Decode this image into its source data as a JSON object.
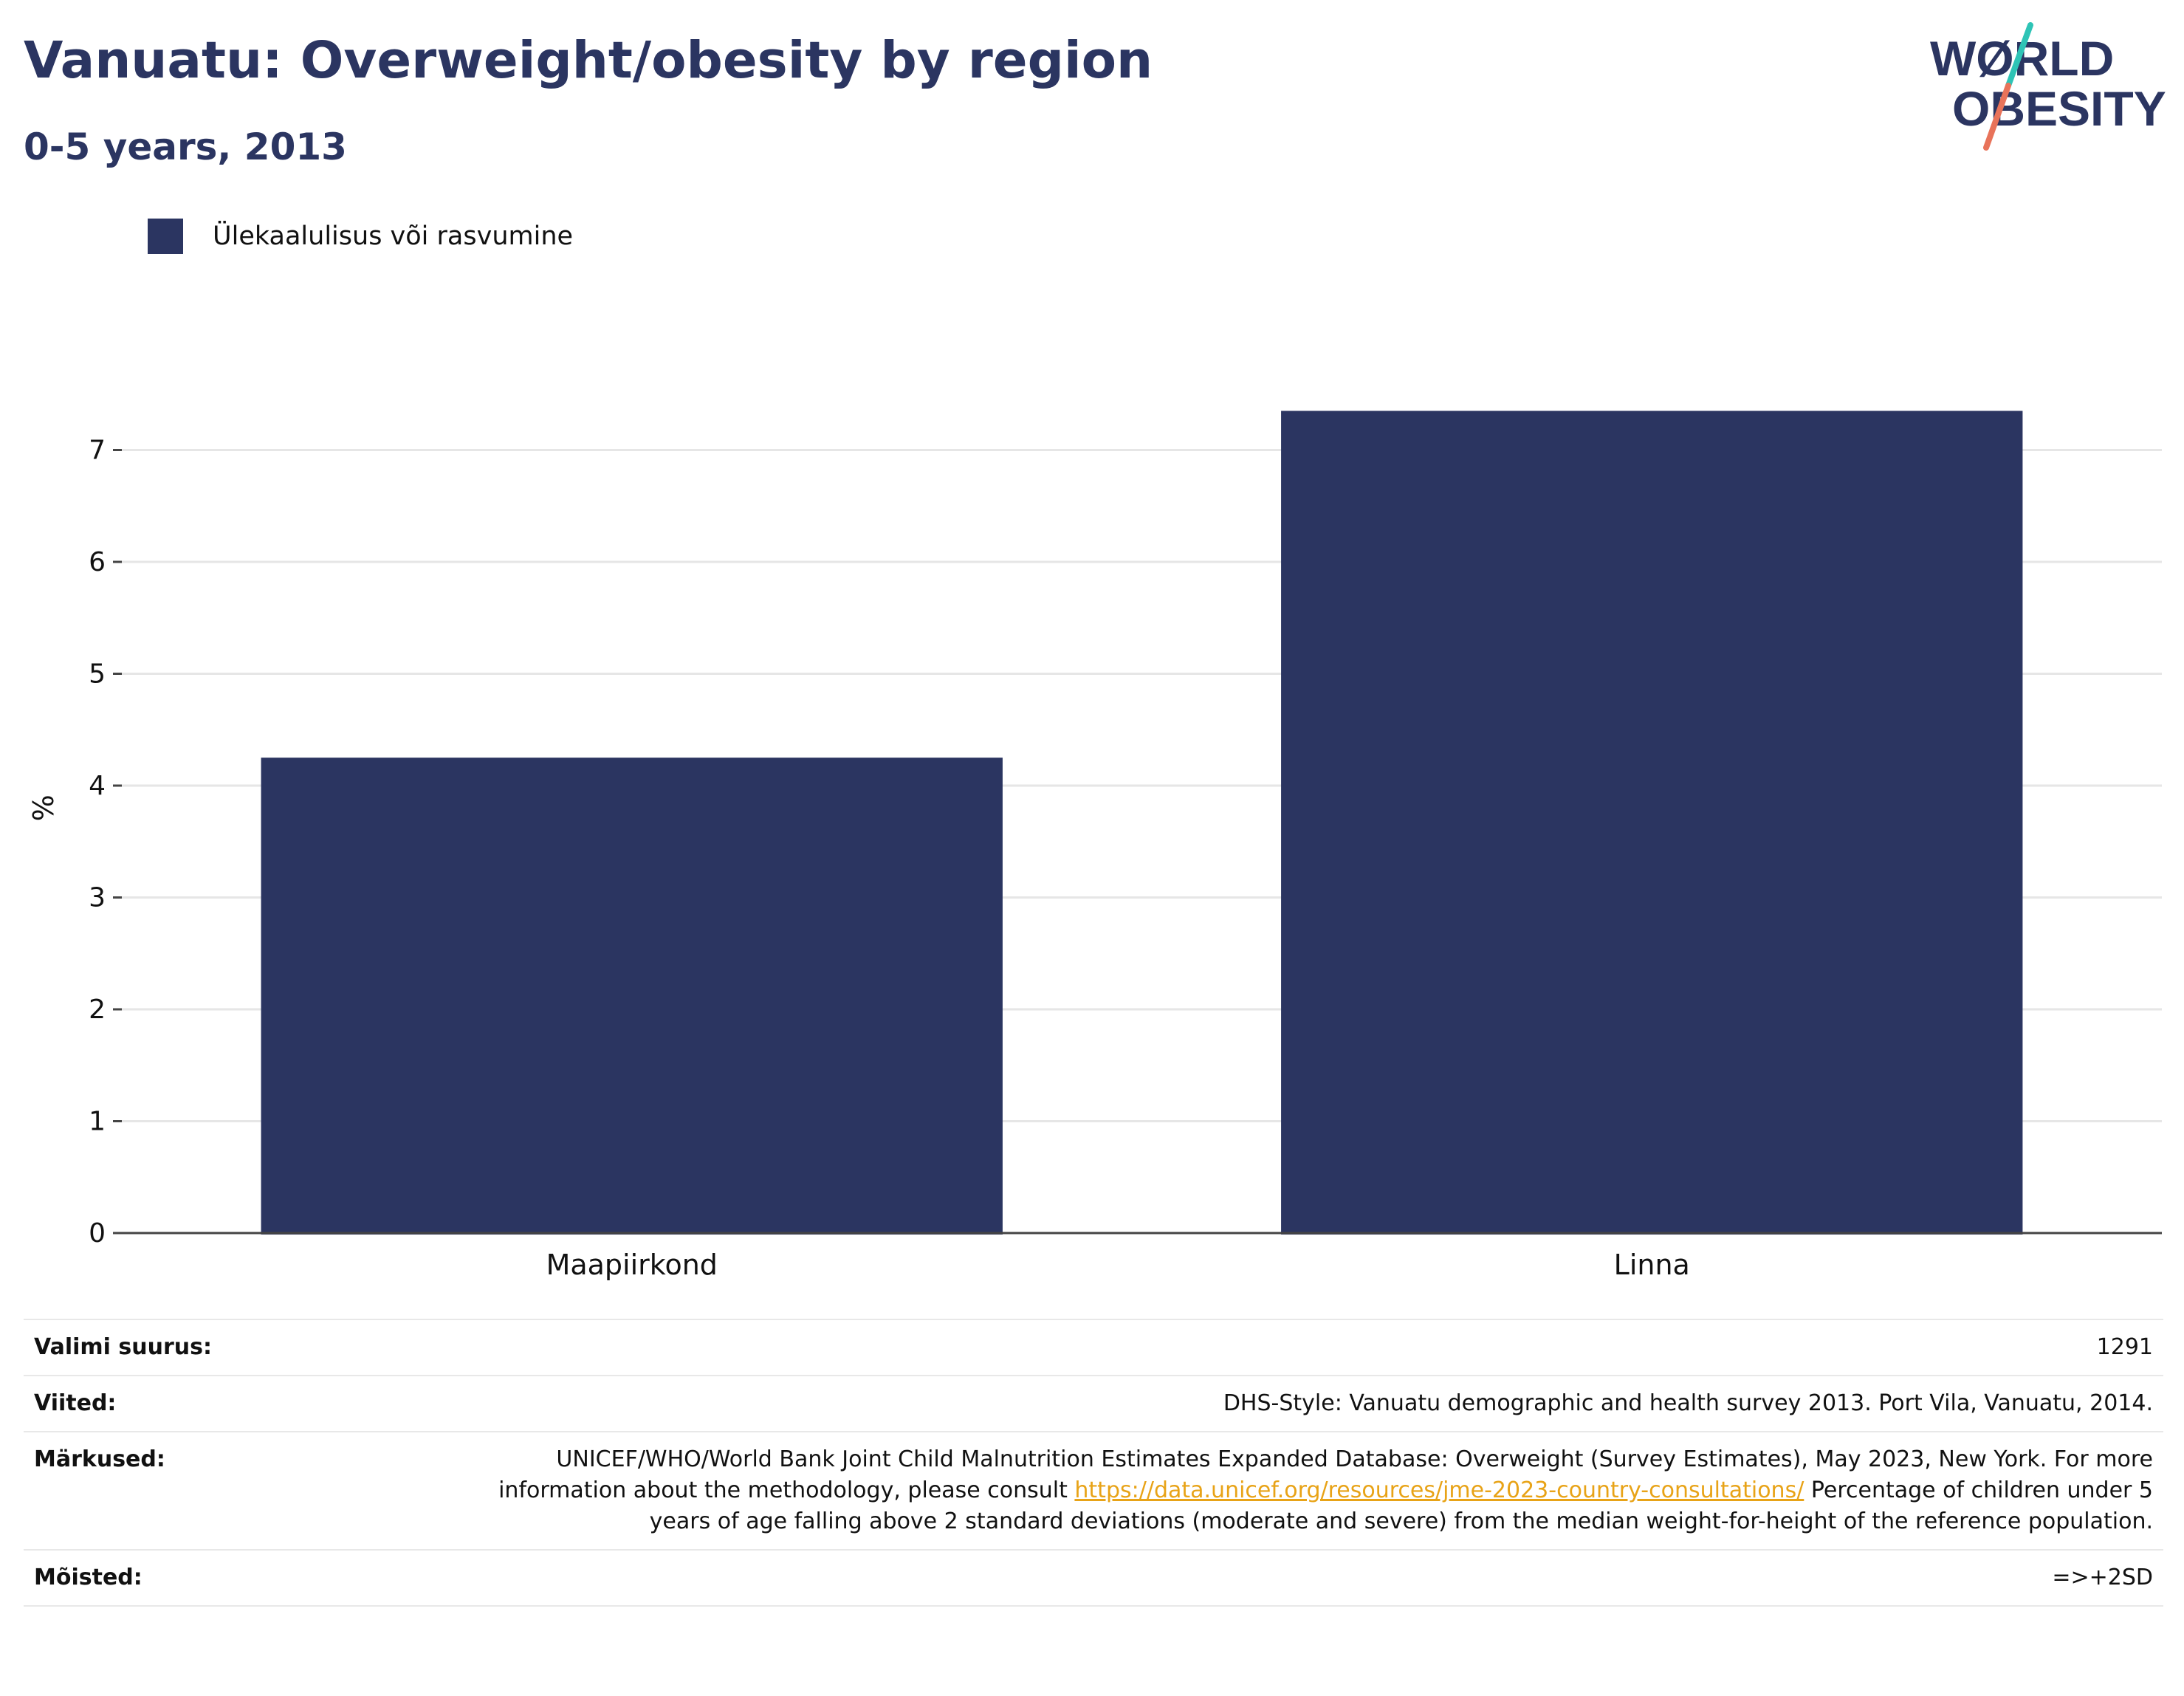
{
  "header": {
    "title": "Vanuatu: Overweight/obesity by region",
    "subtitle": "0-5 years, 2013"
  },
  "logo": {
    "line1": "WØRLD",
    "line2": "OBESITY",
    "text_color": "#2b3561",
    "slash_colors": [
      "#2ec4b6",
      "#e8735a"
    ]
  },
  "legend": {
    "items": [
      {
        "label": "Ülekaalulisus või rasvumine",
        "color": "#2b3561"
      }
    ]
  },
  "chart_data": {
    "type": "bar",
    "categories": [
      "Maapiirkond",
      "Linna"
    ],
    "series": [
      {
        "name": "Ülekaalulisus või rasvumine",
        "values": [
          4.25,
          7.35
        ],
        "color": "#2b3561"
      }
    ],
    "ylabel": "%",
    "xlabel": "",
    "ylim": [
      0,
      7.6
    ],
    "yticks": [
      0,
      1,
      2,
      3,
      4,
      5,
      6,
      7
    ],
    "grid": true,
    "legend_position": "top-left"
  },
  "meta": {
    "sample_size_label": "Valimi suurus:",
    "sample_size_value": "1291",
    "references_label": "Viited:",
    "references_value": "DHS-Style: Vanuatu demographic and health survey 2013. Port Vila, Vanuatu, 2014.",
    "notes_label": "Märkused:",
    "notes_text_1": "UNICEF/WHO/World Bank Joint Child Malnutrition Estimates Expanded Database: Overweight (Survey Estimates), May 2023, New York. For more information about the methodology, please consult",
    "notes_link": "https://data.unicef.org/resources/jme-2023-country-consultations/",
    "notes_text_2": "Percentage of children under 5 years of age falling above 2 standard deviations (moderate and severe) from the median weight-for-height of the reference population.",
    "definitions_label": "Mõisted:",
    "definitions_value": "=>+2SD"
  }
}
